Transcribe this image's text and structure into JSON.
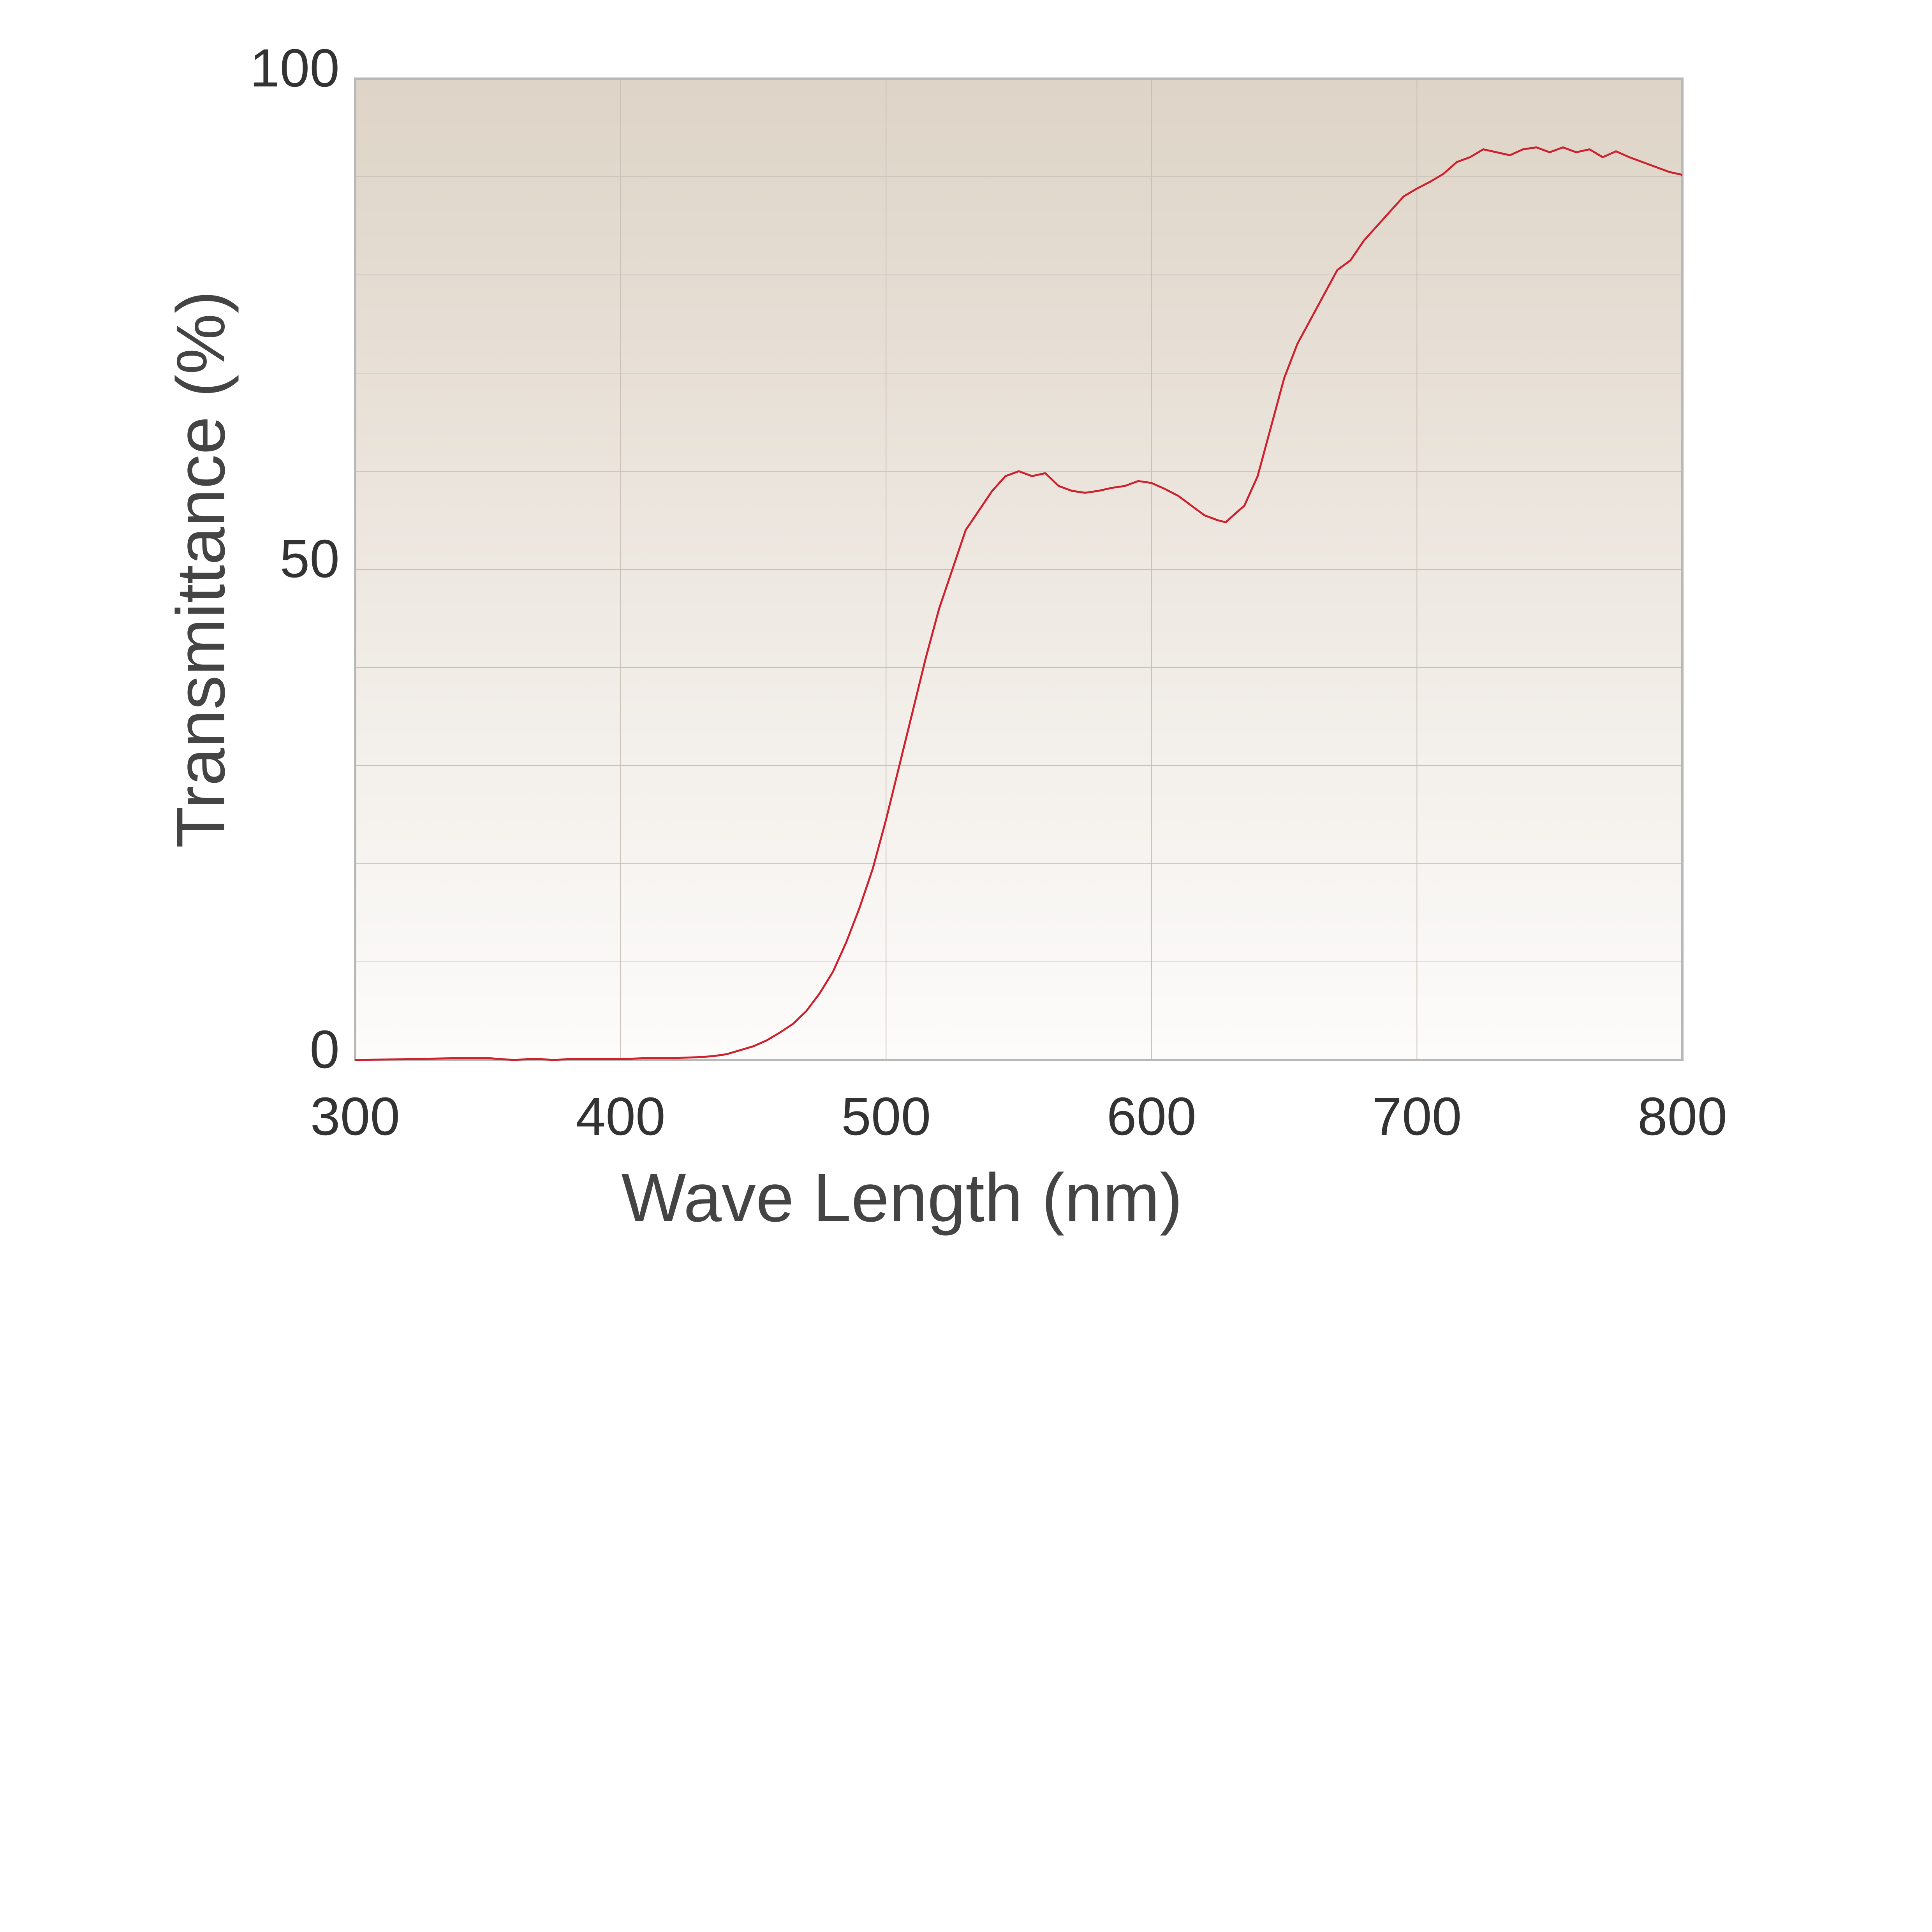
{
  "chart_data": {
    "type": "line",
    "title": "",
    "xlabel": "Wave Length (nm)",
    "ylabel": "Transmittance (%)",
    "xlim": [
      300,
      800
    ],
    "ylim": [
      0,
      100
    ],
    "x_ticks": [
      300,
      400,
      500,
      600,
      700,
      800
    ],
    "x_tick_labels": [
      "300",
      "400",
      "500",
      "600",
      "700",
      "800"
    ],
    "y_ticks": [
      0,
      50,
      100
    ],
    "y_tick_labels": [
      "0",
      "50",
      "100"
    ],
    "grid": true,
    "x_grid_step": 100,
    "y_grid_step": 10,
    "legend": "none",
    "colors": {
      "line": "#d0202e",
      "background_top": "#ded4c7",
      "background_bottom": "#fdfcfb",
      "grid": "#c8bfb5",
      "frame": "#b8b8b8"
    },
    "series": [
      {
        "x": [
          300,
          320,
          340,
          350,
          355,
          360,
          365,
          370,
          375,
          380,
          390,
          400,
          410,
          420,
          430,
          435,
          440,
          445,
          450,
          455,
          460,
          465,
          470,
          475,
          480,
          485,
          490,
          495,
          500,
          505,
          510,
          515,
          520,
          525,
          530,
          535,
          540,
          545,
          550,
          555,
          560,
          565,
          570,
          575,
          580,
          585,
          590,
          595,
          600,
          605,
          610,
          615,
          620,
          625,
          628,
          630,
          635,
          640,
          645,
          650,
          655,
          660,
          665,
          670,
          675,
          680,
          685,
          690,
          695,
          700,
          705,
          710,
          715,
          720,
          725,
          730,
          735,
          740,
          745,
          750,
          755,
          760,
          765,
          770,
          775,
          780,
          785,
          790,
          795,
          800
        ],
        "y": [
          0.0,
          0.1,
          0.2,
          0.2,
          0.1,
          0.0,
          0.1,
          0.1,
          0.0,
          0.1,
          0.1,
          0.1,
          0.2,
          0.2,
          0.3,
          0.4,
          0.6,
          1.0,
          1.4,
          2.0,
          2.8,
          3.7,
          5.0,
          6.8,
          9.0,
          12.0,
          15.5,
          19.5,
          24.5,
          30.0,
          35.5,
          41.0,
          46.0,
          50.0,
          54.0,
          56.0,
          58.0,
          59.5,
          60.0,
          59.5,
          59.8,
          58.5,
          58.0,
          57.8,
          58.0,
          58.3,
          58.5,
          59.0,
          58.8,
          58.2,
          57.5,
          56.5,
          55.5,
          55.0,
          54.8,
          55.3,
          56.5,
          59.5,
          64.5,
          69.5,
          73.0,
          75.5,
          78.0,
          80.5,
          81.5,
          83.5,
          85.0,
          86.5,
          88.0,
          88.8,
          89.5,
          90.3,
          91.5,
          92.0,
          92.8,
          92.5,
          92.2,
          92.8,
          93.0,
          92.5,
          93.0,
          92.5,
          92.8,
          92.0,
          92.6,
          92.0,
          91.5,
          91.0,
          90.5,
          90.2
        ]
      }
    ]
  }
}
